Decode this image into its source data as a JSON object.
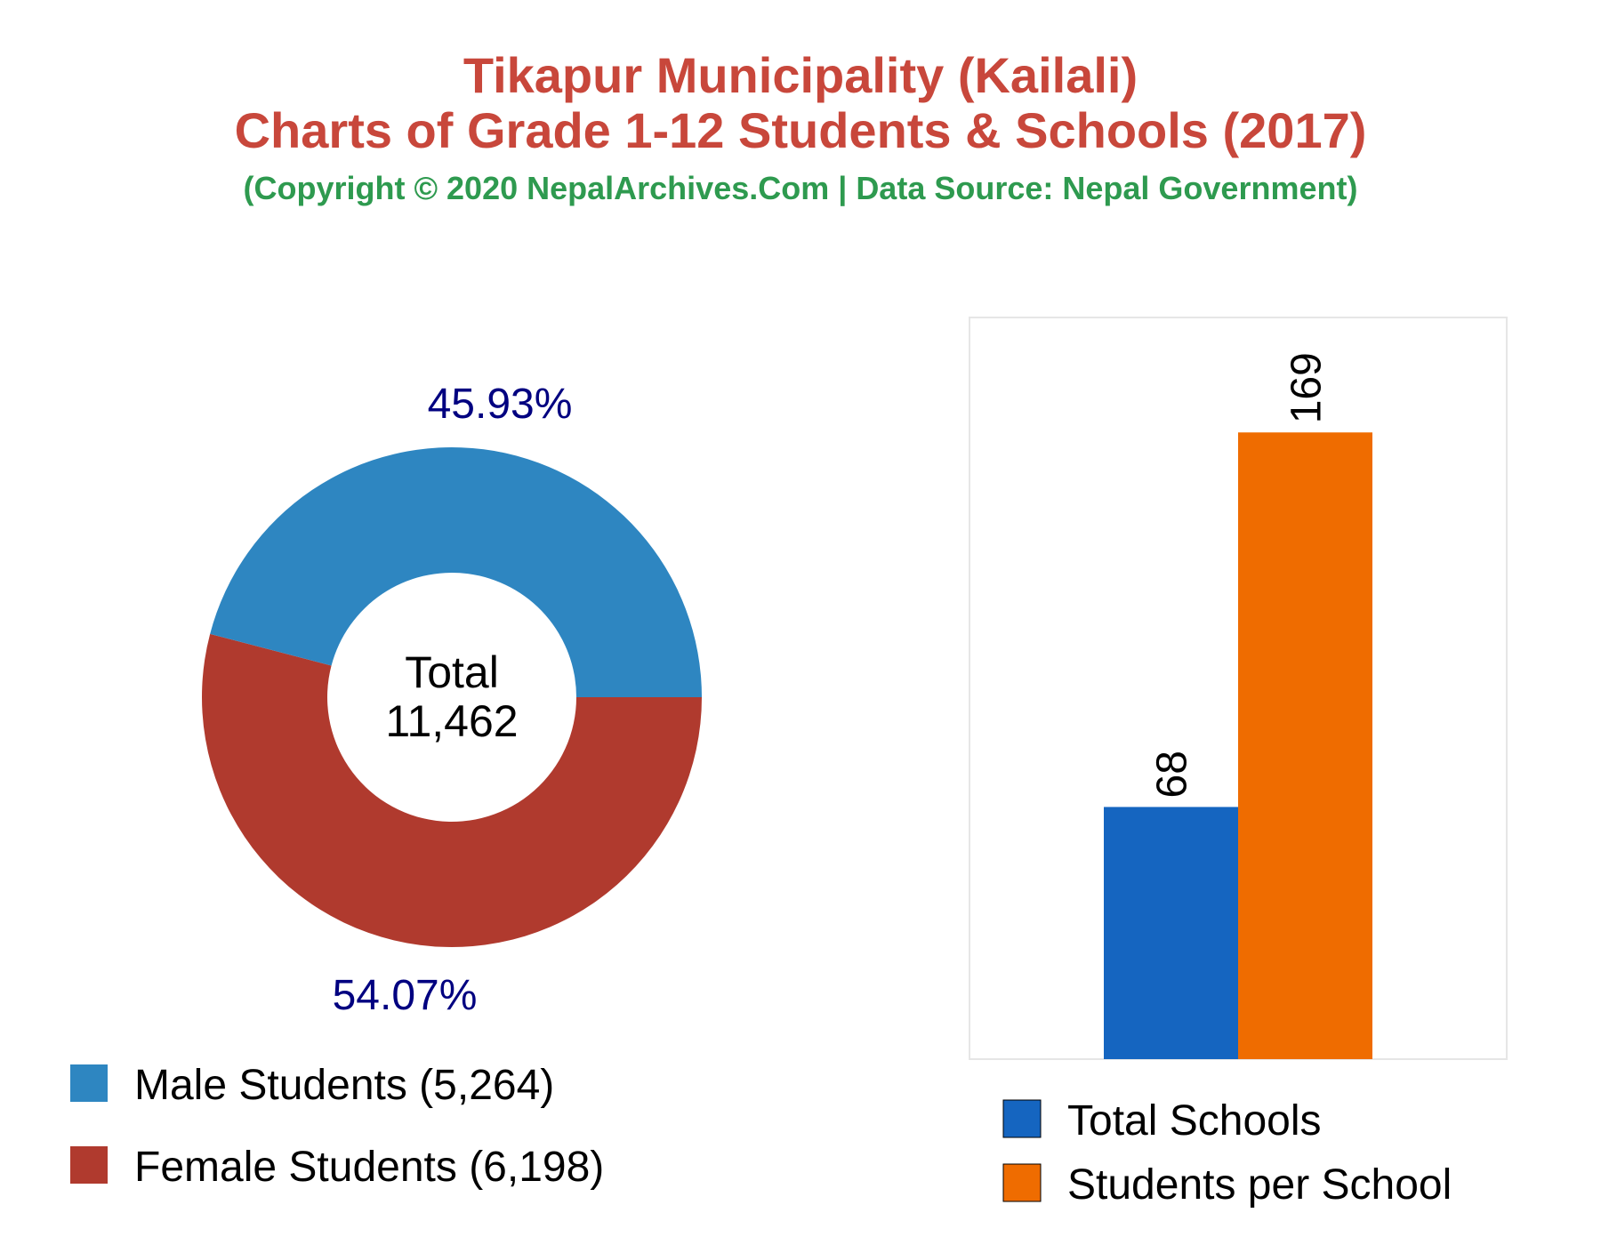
{
  "title": "Tikapur Municipality (Kailali)",
  "subtitle": "Charts of Grade 1-12 Students & Schools (2017)",
  "source": "(Copyright © 2020 NepalArchives.Com | Data Source: Nepal Government)",
  "chart_data": [
    {
      "type": "pie",
      "donut": true,
      "center_label": "Total",
      "center_value": "11,462",
      "slices": [
        {
          "label": "Male Students (5,264)",
          "value": 5264,
          "percent_label": "45.93%",
          "color": "#2e86c1"
        },
        {
          "label": "Female Students (6,198)",
          "value": 6198,
          "percent_label": "54.07%",
          "color": "#b03a2e"
        }
      ],
      "percent_label_color": "#000080"
    },
    {
      "type": "bar",
      "categories": [
        "Total Schools",
        "Students per School"
      ],
      "values": [
        68,
        169
      ],
      "value_labels": [
        "68",
        "169"
      ],
      "colors": [
        "#1565c0",
        "#ef6c00"
      ],
      "ylim": [
        0,
        200
      ],
      "legend": [
        {
          "label": "Total Schools",
          "color": "#1565c0"
        },
        {
          "label": "Students per School",
          "color": "#ef6c00"
        }
      ]
    }
  ]
}
